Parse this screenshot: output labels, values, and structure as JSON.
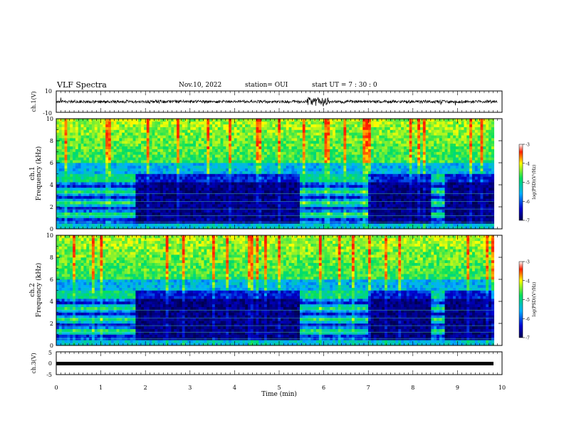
{
  "header": {
    "title": "VLF Spectra",
    "date": "Nov.10, 2022",
    "station": "station= OUI",
    "start": "start  UT =   7 : 30 : 0"
  },
  "chart_data": [
    {
      "type": "line",
      "panel": "ch1-waveform",
      "ylabel": "ch.1(V)",
      "ylim": [
        -10,
        10
      ],
      "yticks": [
        "10",
        "-10"
      ],
      "xlim": [
        0,
        10
      ],
      "description_values": {
        "baseline": 0,
        "typical_amplitude": 2,
        "burst_time_min": [
          5.6,
          6.1
        ]
      }
    },
    {
      "type": "heatmap",
      "panel": "ch1-spectrogram",
      "ylabel": "ch.1\nFrequency (kHz)",
      "ylabel_line1": "ch.1",
      "ylabel_line2": "Frequency (kHz)",
      "yticks": [
        "0",
        "2",
        "4",
        "6",
        "8",
        "10"
      ],
      "ylim": [
        0,
        10
      ],
      "xlim": [
        0,
        9.82
      ],
      "colorbar": {
        "label": "log(PSD)(V²/Hz)",
        "ticks": [
          "-3",
          "-4",
          "-5",
          "-6",
          "-7"
        ],
        "range": [
          -7,
          -3
        ]
      },
      "activity_segments_min": [
        [
          0,
          1.8
        ],
        [
          5.45,
          7.0
        ],
        [
          8.4,
          8.7
        ]
      ]
    },
    {
      "type": "heatmap",
      "panel": "ch2-spectrogram",
      "ylabel_line1": "ch.2",
      "ylabel_line2": "Frequency (kHz)",
      "yticks": [
        "0",
        "2",
        "4",
        "6",
        "8",
        "10"
      ],
      "ylim": [
        0,
        10
      ],
      "xlim": [
        0,
        9.82
      ],
      "colorbar": {
        "label": "log(PSD)(V²/Hz)",
        "ticks": [
          "-3",
          "-4",
          "-5",
          "-6",
          "-7"
        ],
        "range": [
          -7,
          -3
        ]
      },
      "activity_segments_min": [
        [
          0,
          1.8
        ],
        [
          5.45,
          7.0
        ],
        [
          8.4,
          8.7
        ]
      ]
    },
    {
      "type": "line",
      "panel": "ch3-waveform",
      "ylabel": "ch.3(V)",
      "yticks": [
        "5",
        "0",
        "-5"
      ],
      "ylim": [
        -5,
        5
      ],
      "xlim": [
        0,
        9.82
      ],
      "values_constant": 0
    }
  ],
  "xaxis": {
    "label": "Time (min)",
    "ticks": [
      "0",
      "1",
      "2",
      "3",
      "4",
      "5",
      "6",
      "7",
      "8",
      "9",
      "10"
    ],
    "range": [
      0,
      10
    ]
  },
  "colors": {
    "ink": "#000000",
    "background": "#ffffff"
  }
}
